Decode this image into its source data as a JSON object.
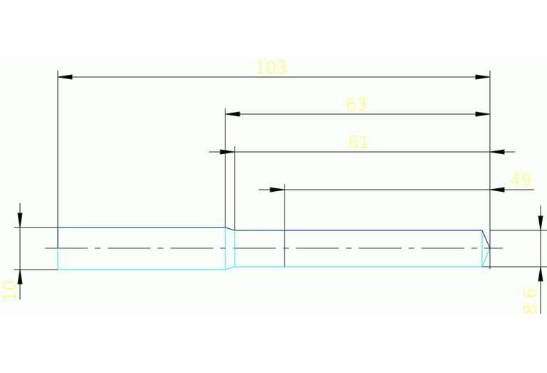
{
  "drawing": {
    "dimensions": {
      "overall_length": "103",
      "length_63": "63",
      "length_61": "61",
      "length_49": "49",
      "diameter_left": "10",
      "diameter_right": "8.6"
    },
    "colors": {
      "background": "#fbfdfb",
      "dimension_line": "#222222",
      "dimension_text": "#ffff44",
      "part_outline": "#40eef0",
      "part_top_edge_left": "#1f6a6a",
      "part_top_edge_right": "#3a30c8",
      "centerline": "#444444"
    }
  }
}
